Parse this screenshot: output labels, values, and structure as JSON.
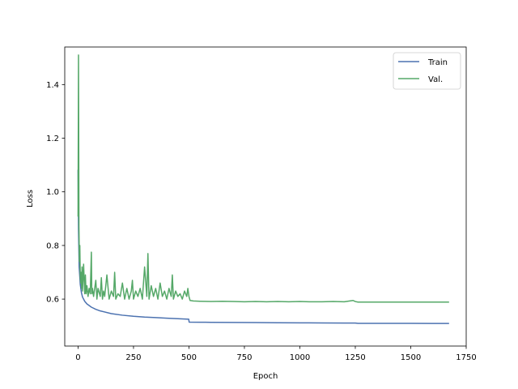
{
  "chart_data": {
    "type": "line",
    "title": "",
    "xlabel": "Epoch",
    "ylabel": "Loss",
    "xlim": [
      -60,
      1750
    ],
    "ylim": [
      0.425,
      1.54
    ],
    "xticks": [
      0,
      250,
      500,
      750,
      1000,
      1250,
      1500,
      1750
    ],
    "yticks": [
      0.6,
      0.8,
      1.0,
      1.2,
      1.4
    ],
    "ytick_labels": [
      "0.6",
      "0.8",
      "1.0",
      "1.2",
      "1.4"
    ],
    "grid": false,
    "legend": {
      "position": "top-right"
    },
    "series": [
      {
        "name": "Train",
        "color": "#4c72b0",
        "x": [
          0,
          2,
          5,
          10,
          15,
          20,
          30,
          40,
          60,
          80,
          100,
          150,
          200,
          250,
          300,
          350,
          400,
          450,
          499,
          501,
          550,
          600,
          700,
          800,
          900,
          1000,
          1100,
          1200,
          1250,
          1262,
          1300,
          1400,
          1500,
          1600,
          1670
        ],
        "y": [
          1.08,
          0.86,
          0.72,
          0.655,
          0.625,
          0.608,
          0.592,
          0.582,
          0.57,
          0.562,
          0.556,
          0.546,
          0.54,
          0.536,
          0.533,
          0.531,
          0.529,
          0.527,
          0.525,
          0.514,
          0.5138,
          0.5135,
          0.513,
          0.5125,
          0.512,
          0.5115,
          0.5112,
          0.5108,
          0.5106,
          0.5098,
          0.5097,
          0.5096,
          0.5095,
          0.5094,
          0.5094
        ]
      },
      {
        "name": "Val.",
        "color": "#55a868",
        "x": [
          0,
          2,
          4,
          6,
          8,
          10,
          12,
          14,
          16,
          18,
          20,
          25,
          30,
          33,
          36,
          40,
          45,
          50,
          55,
          60,
          62,
          65,
          70,
          80,
          85,
          90,
          100,
          105,
          110,
          115,
          120,
          130,
          140,
          150,
          160,
          165,
          170,
          180,
          190,
          200,
          210,
          220,
          230,
          240,
          245,
          250,
          260,
          270,
          280,
          290,
          300,
          310,
          315,
          320,
          330,
          340,
          350,
          360,
          370,
          380,
          390,
          400,
          410,
          420,
          425,
          430,
          440,
          450,
          460,
          470,
          480,
          490,
          495,
          500,
          505,
          520,
          550,
          600,
          650,
          700,
          750,
          800,
          850,
          900,
          950,
          1000,
          1050,
          1100,
          1150,
          1200,
          1240,
          1250,
          1262,
          1300,
          1400,
          1500,
          1600,
          1670
        ],
        "y": [
          0.91,
          1.51,
          0.87,
          0.74,
          0.8,
          0.68,
          0.66,
          0.7,
          0.64,
          0.72,
          0.63,
          0.73,
          0.62,
          0.69,
          0.62,
          0.65,
          0.61,
          0.64,
          0.62,
          0.775,
          0.62,
          0.64,
          0.61,
          0.67,
          0.6,
          0.64,
          0.61,
          0.68,
          0.6,
          0.63,
          0.61,
          0.69,
          0.6,
          0.63,
          0.61,
          0.7,
          0.6,
          0.62,
          0.61,
          0.66,
          0.6,
          0.64,
          0.6,
          0.63,
          0.67,
          0.6,
          0.63,
          0.61,
          0.64,
          0.6,
          0.72,
          0.61,
          0.77,
          0.6,
          0.65,
          0.61,
          0.64,
          0.6,
          0.66,
          0.61,
          0.63,
          0.6,
          0.64,
          0.61,
          0.69,
          0.6,
          0.63,
          0.61,
          0.62,
          0.6,
          0.63,
          0.61,
          0.64,
          0.61,
          0.595,
          0.593,
          0.592,
          0.591,
          0.592,
          0.591,
          0.59,
          0.591,
          0.59,
          0.591,
          0.59,
          0.591,
          0.59,
          0.59,
          0.591,
          0.59,
          0.595,
          0.591,
          0.589,
          0.589,
          0.589,
          0.589,
          0.589,
          0.589
        ]
      }
    ]
  }
}
